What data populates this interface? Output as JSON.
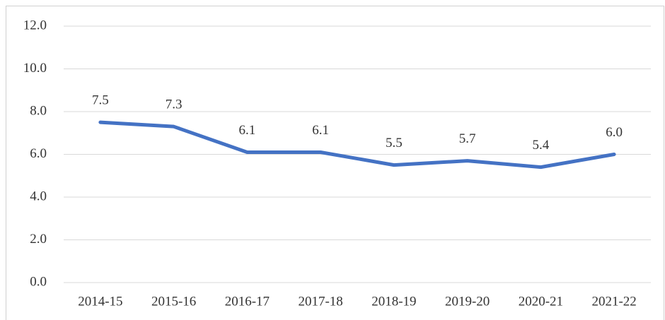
{
  "chart_data": {
    "type": "line",
    "categories": [
      "2014-15",
      "2015-16",
      "2016-17",
      "2017-18",
      "2018-19",
      "2019-20",
      "2020-21",
      "2021-22"
    ],
    "series": [
      {
        "color": "#4472c4",
        "values": [
          7.5,
          7.3,
          6.1,
          6.1,
          5.5,
          5.7,
          5.4,
          6.0
        ],
        "value_labels": [
          "7.5",
          "7.3",
          "6.1",
          "6.1",
          "5.5",
          "5.7",
          "5.4",
          "6.0"
        ]
      }
    ],
    "ylim": [
      0,
      12
    ],
    "yticks": [
      {
        "value": 0,
        "label": "0.0"
      },
      {
        "value": 2,
        "label": "2.0"
      },
      {
        "value": 4,
        "label": "4.0"
      },
      {
        "value": 6,
        "label": "6.0"
      },
      {
        "value": 8,
        "label": "8.0"
      },
      {
        "value": 10,
        "label": "10.0"
      },
      {
        "value": 12,
        "label": "12.0"
      }
    ],
    "grid": true
  }
}
